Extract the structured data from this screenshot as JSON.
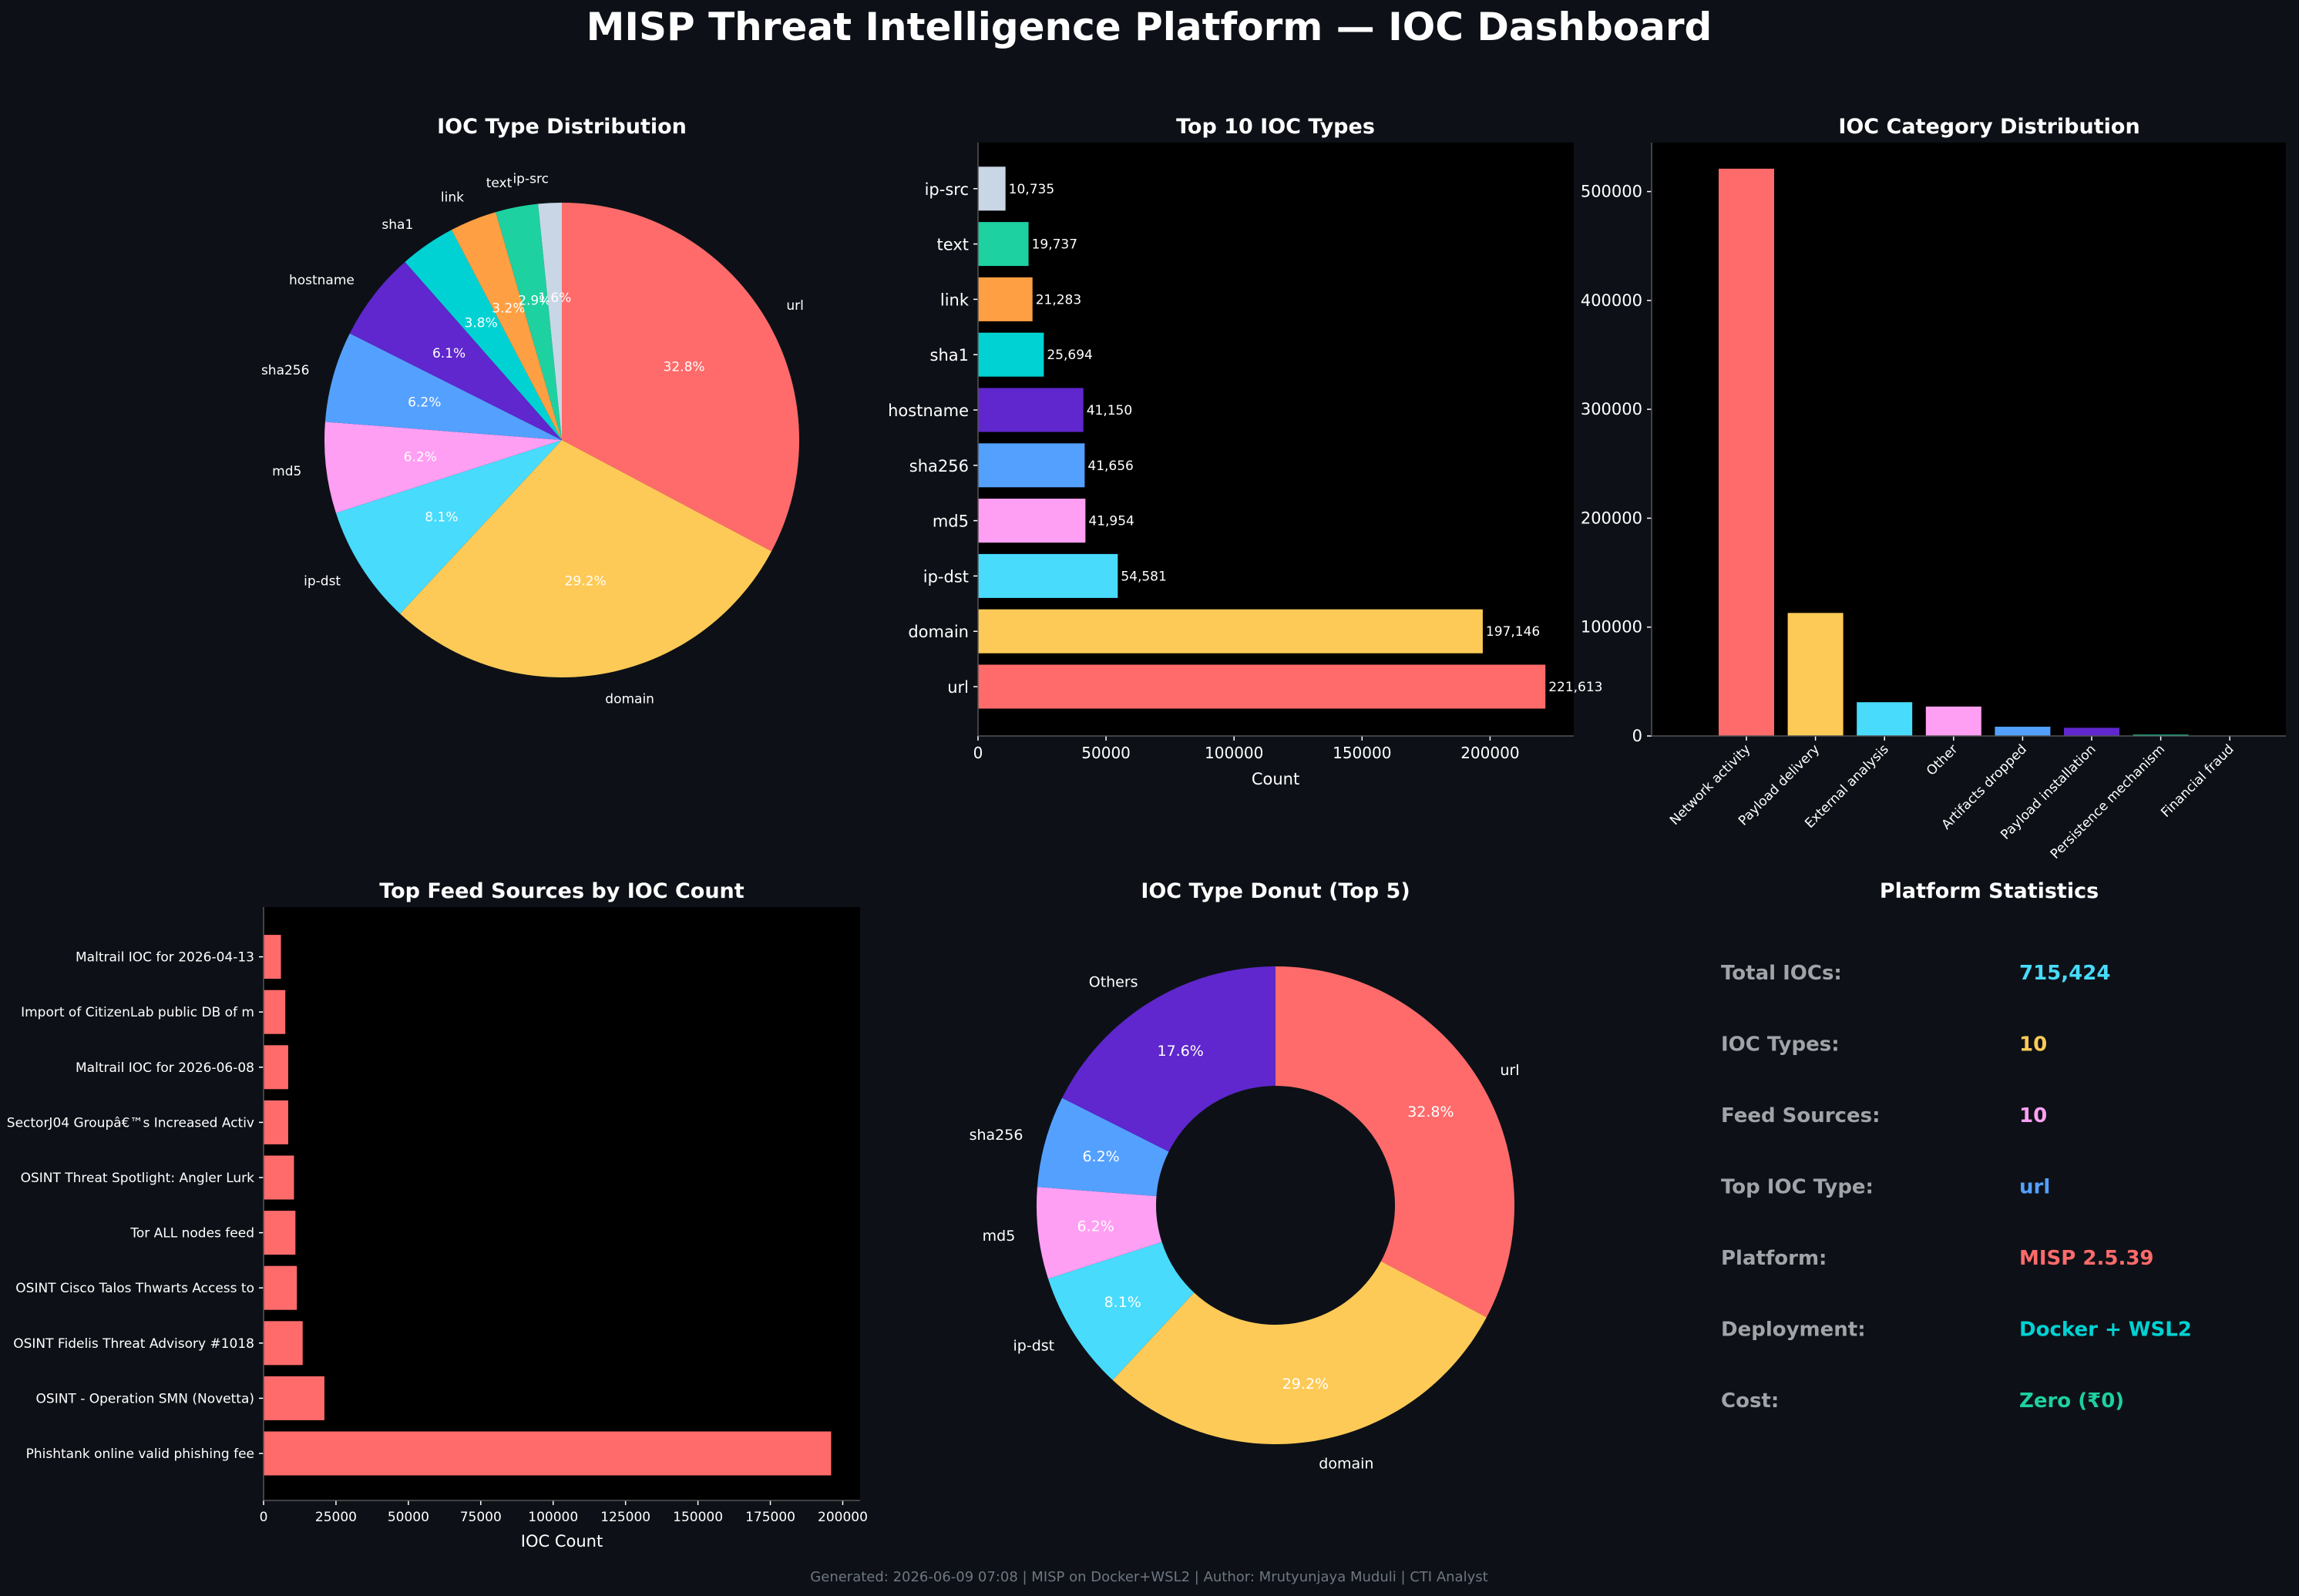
{
  "title": "MISP Threat Intelligence Platform — IOC Dashboard",
  "footer": "Generated: 2026-06-09 07:08 | MISP on Docker+WSL2 | Author: Mrutyunjaya Muduli | CTI Analyst",
  "colors": {
    "background": "#0d1117",
    "plot_bg": "#000000",
    "text": "#ffffff",
    "muted": "#8b949e",
    "url": "#ff6b6b",
    "domain": "#feca57",
    "ip-dst": "#48dbfb",
    "md5": "#ff9ff3",
    "sha256": "#54a0ff",
    "hostname": "#5f27cd",
    "sha1": "#00d2d3",
    "link": "#ff9f43",
    "text_type": "#1dd1a1",
    "ip-src": "#c8d6e5"
  },
  "stats": {
    "title": "Platform Statistics",
    "rows": [
      {
        "label": "Total IOCs:",
        "value": "715,424",
        "color": "#48dbfb"
      },
      {
        "label": "IOC Types:",
        "value": "10",
        "color": "#feca57"
      },
      {
        "label": "Feed Sources:",
        "value": "10",
        "color": "#ff9ff3"
      },
      {
        "label": "Top IOC Type:",
        "value": "url",
        "color": "#54a0ff"
      },
      {
        "label": "Platform:",
        "value": "MISP 2.5.39",
        "color": "#ff6b6b"
      },
      {
        "label": "Deployment:",
        "value": "Docker + WSL2",
        "color": "#00d2d3"
      },
      {
        "label": "Cost:",
        "value": "Zero (₹0)",
        "color": "#1dd1a1"
      }
    ]
  },
  "chart_data": [
    {
      "type": "pie",
      "title": "IOC Type Distribution",
      "labels": [
        "url",
        "domain",
        "ip-dst",
        "md5",
        "sha256",
        "hostname",
        "sha1",
        "link",
        "text",
        "ip-src"
      ],
      "values": [
        32.8,
        29.2,
        8.1,
        6.2,
        6.2,
        6.1,
        3.8,
        3.2,
        2.9,
        1.6
      ],
      "value_labels": [
        "32.8%",
        "29.2%",
        "8.1%",
        "6.2%",
        "6.2%",
        "6.1%",
        "3.8%",
        "3.2%",
        "2.9%",
        "1.6%"
      ],
      "colors": [
        "#ff6b6b",
        "#feca57",
        "#48dbfb",
        "#ff9ff3",
        "#54a0ff",
        "#5f27cd",
        "#00d2d3",
        "#ff9f43",
        "#1dd1a1",
        "#c8d6e5"
      ]
    },
    {
      "type": "bar",
      "orientation": "horizontal",
      "title": "Top 10 IOC Types",
      "categories": [
        "url",
        "domain",
        "ip-dst",
        "md5",
        "sha256",
        "hostname",
        "sha1",
        "link",
        "text",
        "ip-src"
      ],
      "values": [
        221613,
        197146,
        54581,
        41954,
        41656,
        41150,
        25694,
        21283,
        19737,
        10735
      ],
      "value_labels": [
        "221,613",
        "197,146",
        "54,581",
        "41,954",
        "41,656",
        "41,150",
        "25,694",
        "21,283",
        "19,737",
        "10,735"
      ],
      "colors": [
        "#ff6b6b",
        "#feca57",
        "#48dbfb",
        "#ff9ff3",
        "#54a0ff",
        "#5f27cd",
        "#00d2d3",
        "#ff9f43",
        "#1dd1a1",
        "#c8d6e5"
      ],
      "xlabel": "Count",
      "xlim": [
        0,
        232694
      ],
      "xticks": [
        0,
        50000,
        100000,
        150000,
        200000
      ],
      "xtick_labels": [
        "0",
        "50000",
        "100000",
        "150000",
        "200000"
      ]
    },
    {
      "type": "bar",
      "orientation": "vertical",
      "title": "IOC Category Distribution",
      "categories": [
        "Network activity",
        "Payload delivery",
        "External analysis",
        "Other",
        "Artifacts dropped",
        "Payload installation",
        "Persistence mechanism",
        "Financial fraud"
      ],
      "values": [
        521000,
        113000,
        31000,
        27000,
        8500,
        7500,
        1200,
        300
      ],
      "colors": [
        "#ff6b6b",
        "#feca57",
        "#48dbfb",
        "#ff9ff3",
        "#54a0ff",
        "#5f27cd",
        "#1dd1a1",
        "#c8d6e5"
      ],
      "ylim": [
        0,
        545000
      ],
      "yticks": [
        0,
        100000,
        200000,
        300000,
        400000,
        500000
      ],
      "ytick_labels": [
        "0",
        "100000",
        "200000",
        "300000",
        "400000",
        "500000"
      ]
    },
    {
      "type": "bar",
      "orientation": "horizontal",
      "title": "Top Feed Sources by IOC Count",
      "categories": [
        "Phishtank online valid phishing fee",
        "OSINT - Operation SMN (Novetta)",
        "OSINT Fidelis Threat Advisory #1018",
        "OSINT Cisco Talos Thwarts Access to",
        "Tor ALL nodes feed",
        "OSINT Threat Spotlight: Angler Lurk",
        "SectorJ04 Groupâ€™s Increased Activ",
        "Maltrail IOC for 2026-06-08",
        "Import of CitizenLab public DB of m",
        "Maltrail IOC for 2026-04-13"
      ],
      "values": [
        196000,
        21000,
        13500,
        11500,
        11000,
        10500,
        8500,
        8500,
        7500,
        6000
      ],
      "color": "#ff6b6b",
      "xlabel": "IOC Count",
      "xlim": [
        0,
        206000
      ],
      "xticks": [
        0,
        25000,
        50000,
        75000,
        100000,
        125000,
        150000,
        175000,
        200000
      ],
      "xtick_labels": [
        "0",
        "25000",
        "50000",
        "75000",
        "100000",
        "125000",
        "150000",
        "175000",
        "200000"
      ]
    },
    {
      "type": "pie",
      "subtype": "donut",
      "title": "IOC Type Donut (Top 5)",
      "labels": [
        "url",
        "domain",
        "ip-dst",
        "md5",
        "sha256",
        "Others"
      ],
      "values": [
        32.8,
        29.2,
        8.1,
        6.2,
        6.2,
        17.6
      ],
      "value_labels": [
        "32.8%",
        "29.2%",
        "8.1%",
        "6.2%",
        "6.2%",
        "17.6%"
      ],
      "colors": [
        "#ff6b6b",
        "#feca57",
        "#48dbfb",
        "#ff9ff3",
        "#54a0ff",
        "#5f27cd"
      ]
    }
  ]
}
